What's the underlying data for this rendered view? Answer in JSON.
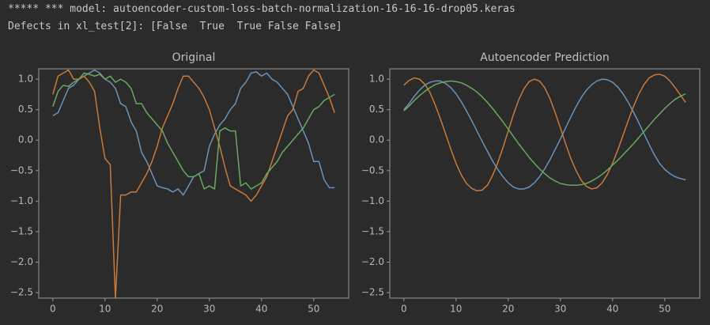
{
  "output": {
    "lines": [
      "***** *** model: autoencoder-custom-loss-batch-normalization-16-16-16-drop05.keras",
      "Defects in xl_test[2]: [False  True  True False False]"
    ]
  },
  "chart_data": [
    {
      "type": "line",
      "title": "Original",
      "x": [
        0,
        1,
        2,
        3,
        4,
        5,
        6,
        7,
        8,
        9,
        10,
        11,
        12,
        13,
        14,
        15,
        16,
        17,
        18,
        19,
        20,
        21,
        22,
        23,
        24,
        25,
        26,
        27,
        28,
        29,
        30,
        31,
        32,
        33,
        34,
        35,
        36,
        37,
        38,
        39,
        40,
        41,
        42,
        43,
        44,
        45,
        46,
        47,
        48,
        49,
        50,
        51,
        52,
        53,
        54
      ],
      "series": [
        {
          "color": "#6a93b8",
          "values": [
            0.4,
            0.45,
            0.65,
            0.85,
            0.9,
            1.0,
            1.05,
            1.1,
            1.15,
            1.1,
            1.0,
            0.95,
            0.85,
            0.6,
            0.55,
            0.3,
            0.15,
            -0.2,
            -0.35,
            -0.55,
            -0.75,
            -0.78,
            -0.8,
            -0.85,
            -0.8,
            -0.9,
            -0.75,
            -0.6,
            -0.55,
            -0.5,
            -0.1,
            0.1,
            0.25,
            0.35,
            0.5,
            0.6,
            0.85,
            0.95,
            1.1,
            1.12,
            1.05,
            1.1,
            1.0,
            0.95,
            0.85,
            0.75,
            0.55,
            0.35,
            0.15,
            -0.05,
            -0.35,
            -0.35,
            -0.65,
            -0.78,
            -0.78
          ]
        },
        {
          "color": "#c97a3a",
          "values": [
            0.75,
            1.05,
            1.1,
            1.15,
            1.0,
            1.0,
            1.05,
            0.95,
            0.8,
            0.2,
            -0.3,
            -0.4,
            -2.6,
            -0.9,
            -0.9,
            -0.85,
            -0.85,
            -0.7,
            -0.55,
            -0.35,
            -0.1,
            0.2,
            0.4,
            0.6,
            0.85,
            1.05,
            1.05,
            0.95,
            0.85,
            0.7,
            0.5,
            0.2,
            -0.1,
            -0.45,
            -0.75,
            -0.8,
            -0.85,
            -0.9,
            -1.0,
            -0.9,
            -0.75,
            -0.6,
            -0.35,
            -0.1,
            0.15,
            0.4,
            0.5,
            0.8,
            0.85,
            1.05,
            1.15,
            1.1,
            0.9,
            0.7,
            0.45
          ]
        },
        {
          "color": "#6aa85f",
          "values": [
            0.55,
            0.8,
            0.9,
            0.88,
            0.95,
            1.0,
            1.1,
            1.08,
            1.05,
            1.08,
            1.0,
            1.05,
            0.95,
            1.0,
            0.95,
            0.85,
            0.6,
            0.6,
            0.45,
            0.35,
            0.25,
            0.15,
            -0.05,
            -0.2,
            -0.35,
            -0.5,
            -0.6,
            -0.6,
            -0.55,
            -0.8,
            -0.75,
            -0.8,
            0.15,
            0.2,
            0.15,
            0.15,
            -0.75,
            -0.7,
            -0.8,
            -0.75,
            -0.7,
            -0.55,
            -0.45,
            -0.35,
            -0.2,
            -0.1,
            0.0,
            0.1,
            0.2,
            0.35,
            0.5,
            0.55,
            0.65,
            0.7,
            0.75
          ]
        }
      ],
      "xlim": [
        -2.7,
        56.7
      ],
      "xticks": [
        0,
        10,
        20,
        30,
        40,
        50
      ],
      "ylim": [
        -2.59,
        1.17
      ],
      "yticks": [
        {
          "value": 1.0,
          "label": "1.0"
        },
        {
          "value": 0.5,
          "label": "0.5"
        },
        {
          "value": 0.0,
          "label": "0.0"
        },
        {
          "value": -0.5,
          "label": "−0.5"
        },
        {
          "value": -1.0,
          "label": "−1.0"
        },
        {
          "value": -1.5,
          "label": "−1.5"
        },
        {
          "value": -2.0,
          "label": "−2.0"
        },
        {
          "value": -2.5,
          "label": "−2.5"
        }
      ]
    },
    {
      "type": "line",
      "title": "Autoencoder Prediction",
      "x": [
        0,
        1,
        2,
        3,
        4,
        5,
        6,
        7,
        8,
        9,
        10,
        11,
        12,
        13,
        14,
        15,
        16,
        17,
        18,
        19,
        20,
        21,
        22,
        23,
        24,
        25,
        26,
        27,
        28,
        29,
        30,
        31,
        32,
        33,
        34,
        35,
        36,
        37,
        38,
        39,
        40,
        41,
        42,
        43,
        44,
        45,
        46,
        47,
        48,
        49,
        50,
        51,
        52,
        53,
        54
      ],
      "series": [
        {
          "color": "#6a93b8",
          "values": [
            0.5,
            0.6,
            0.72,
            0.82,
            0.9,
            0.95,
            0.97,
            0.97,
            0.93,
            0.86,
            0.76,
            0.63,
            0.48,
            0.32,
            0.15,
            -0.02,
            -0.18,
            -0.34,
            -0.48,
            -0.6,
            -0.7,
            -0.77,
            -0.8,
            -0.8,
            -0.77,
            -0.7,
            -0.6,
            -0.47,
            -0.32,
            -0.15,
            0.02,
            0.2,
            0.38,
            0.55,
            0.7,
            0.82,
            0.91,
            0.97,
            1.0,
            0.99,
            0.95,
            0.87,
            0.76,
            0.62,
            0.46,
            0.29,
            0.11,
            -0.07,
            -0.24,
            -0.38,
            -0.48,
            -0.55,
            -0.6,
            -0.63,
            -0.65
          ]
        },
        {
          "color": "#c97a3a",
          "values": [
            0.9,
            0.98,
            1.02,
            1.0,
            0.92,
            0.78,
            0.58,
            0.35,
            0.1,
            -0.15,
            -0.38,
            -0.57,
            -0.71,
            -0.79,
            -0.83,
            -0.82,
            -0.74,
            -0.58,
            -0.37,
            -0.12,
            0.15,
            0.42,
            0.66,
            0.84,
            0.96,
            1.0,
            0.97,
            0.86,
            0.68,
            0.45,
            0.2,
            -0.06,
            -0.3,
            -0.5,
            -0.66,
            -0.76,
            -0.8,
            -0.78,
            -0.7,
            -0.56,
            -0.38,
            -0.16,
            0.08,
            0.32,
            0.55,
            0.75,
            0.91,
            1.02,
            1.07,
            1.08,
            1.05,
            0.97,
            0.86,
            0.74,
            0.62
          ]
        },
        {
          "color": "#6aa85f",
          "values": [
            0.48,
            0.56,
            0.65,
            0.73,
            0.8,
            0.86,
            0.91,
            0.94,
            0.96,
            0.97,
            0.96,
            0.94,
            0.9,
            0.85,
            0.79,
            0.71,
            0.62,
            0.52,
            0.41,
            0.3,
            0.18,
            0.06,
            -0.06,
            -0.17,
            -0.28,
            -0.38,
            -0.47,
            -0.55,
            -0.62,
            -0.67,
            -0.71,
            -0.73,
            -0.74,
            -0.74,
            -0.73,
            -0.71,
            -0.67,
            -0.62,
            -0.56,
            -0.49,
            -0.41,
            -0.33,
            -0.24,
            -0.15,
            -0.06,
            0.04,
            0.14,
            0.24,
            0.34,
            0.43,
            0.52,
            0.6,
            0.67,
            0.72,
            0.76
          ]
        }
      ],
      "xlim": [
        -2.7,
        56.7
      ],
      "xticks": [
        0,
        10,
        20,
        30,
        40,
        50
      ],
      "ylim": [
        -2.59,
        1.17
      ],
      "yticks": [
        {
          "value": 1.0,
          "label": "1.0"
        },
        {
          "value": 0.5,
          "label": "0.5"
        },
        {
          "value": 0.0,
          "label": "0.0"
        },
        {
          "value": -0.5,
          "label": "−0.5"
        },
        {
          "value": -1.0,
          "label": "−1.0"
        },
        {
          "value": -1.5,
          "label": "−1.5"
        },
        {
          "value": -2.0,
          "label": "−2.0"
        },
        {
          "value": -2.5,
          "label": "−2.5"
        }
      ]
    }
  ]
}
